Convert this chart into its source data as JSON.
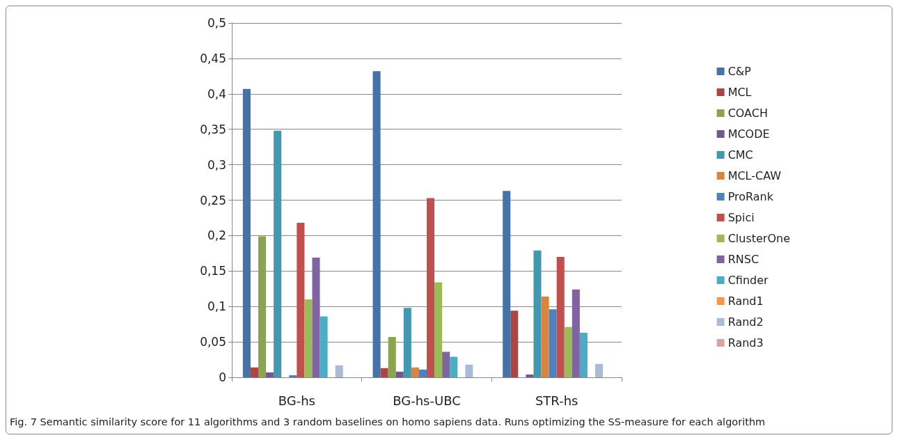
{
  "chart_data": {
    "type": "bar",
    "categories": [
      "BG-hs",
      "BG-hs-UBC",
      "STR-hs"
    ],
    "series": [
      {
        "name": "C&P",
        "color": "#4572a7",
        "values": [
          0.407,
          0.432,
          0.263
        ]
      },
      {
        "name": "MCL",
        "color": "#aa4643",
        "values": [
          0.014,
          0.013,
          0.094
        ]
      },
      {
        "name": "COACH",
        "color": "#89a54e",
        "values": [
          0.199,
          0.057,
          0
        ]
      },
      {
        "name": "MCODE",
        "color": "#71588f",
        "values": [
          0.007,
          0.008,
          0.004
        ]
      },
      {
        "name": "CMC",
        "color": "#4198af",
        "values": [
          0.348,
          0.098,
          0.179
        ]
      },
      {
        "name": "MCL-CAW",
        "color": "#db843d",
        "values": [
          0,
          0.014,
          0.114
        ]
      },
      {
        "name": "ProRank",
        "color": "#4f81bd",
        "values": [
          0.003,
          0.011,
          0.096
        ]
      },
      {
        "name": "Spici",
        "color": "#c0504d",
        "values": [
          0.218,
          0.253,
          0.17
        ]
      },
      {
        "name": "ClusterOne",
        "color": "#9bbb59",
        "values": [
          0.11,
          0.134,
          0.071
        ]
      },
      {
        "name": "RNSC",
        "color": "#8064a2",
        "values": [
          0.169,
          0.036,
          0.124
        ]
      },
      {
        "name": "Cfinder",
        "color": "#4bacc6",
        "values": [
          0.086,
          0.029,
          0.063
        ]
      },
      {
        "name": "Rand1",
        "color": "#f79646",
        "values": [
          0,
          0,
          0
        ]
      },
      {
        "name": "Rand2",
        "color": "#aabad7",
        "values": [
          0.017,
          0.018,
          0.019
        ]
      },
      {
        "name": "Rand3",
        "color": "#d9a5a4",
        "values": [
          0,
          0,
          0
        ]
      }
    ],
    "ylim": [
      0,
      0.5
    ],
    "yticks": [
      {
        "value": 0,
        "label": "0"
      },
      {
        "value": 0.05,
        "label": "0,05"
      },
      {
        "value": 0.1,
        "label": "0,1"
      },
      {
        "value": 0.15,
        "label": "0,15"
      },
      {
        "value": 0.2,
        "label": "0,2"
      },
      {
        "value": 0.25,
        "label": "0,25"
      },
      {
        "value": 0.3,
        "label": "0,3"
      },
      {
        "value": 0.35,
        "label": "0,35"
      },
      {
        "value": 0.4,
        "label": "0,4"
      },
      {
        "value": 0.45,
        "label": "0,45"
      },
      {
        "value": 0.5,
        "label": "0,5"
      }
    ],
    "grid": "y",
    "legend": "right",
    "annotations": [
      "Fig. 7 Semantic similarity score for 11 algorithms and 3 random baselines on homo sapiens data. Runs optimizing the SS-measure for each algorithm"
    ]
  }
}
